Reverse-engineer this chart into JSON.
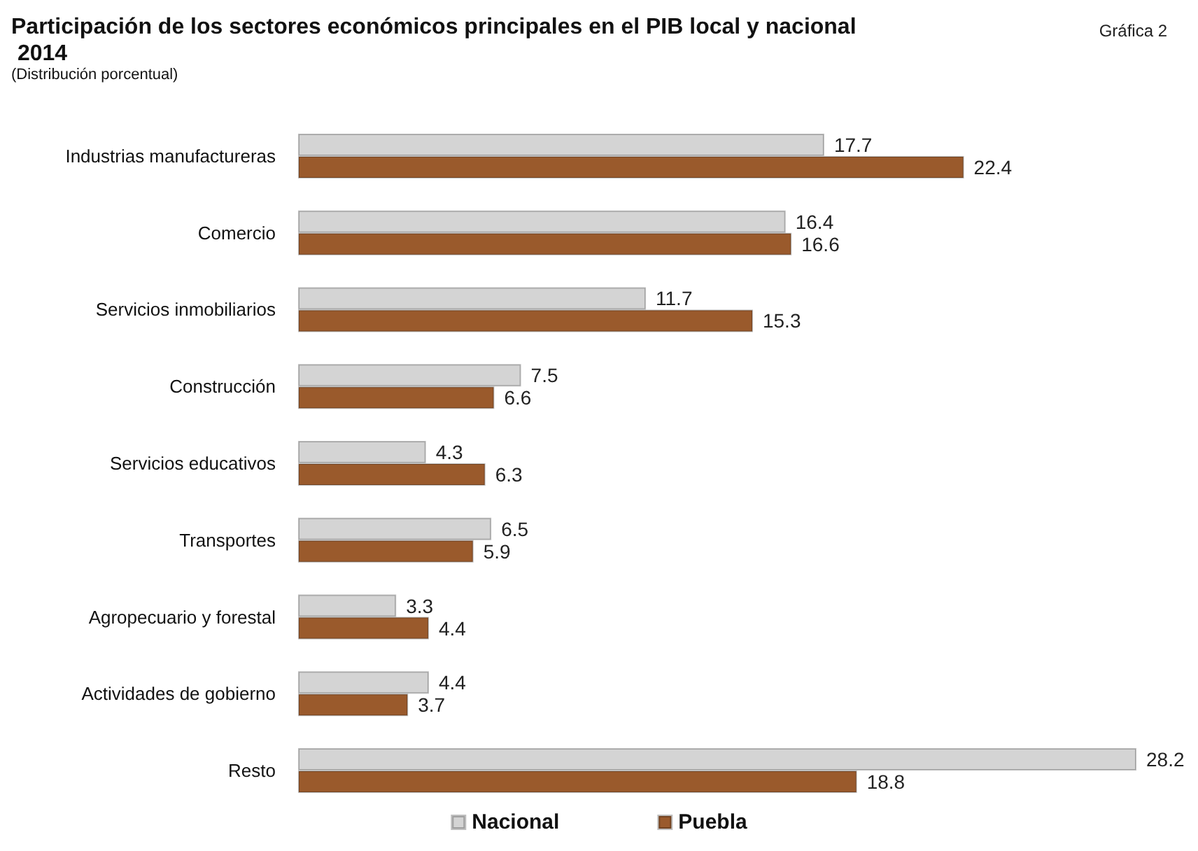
{
  "chart_data": {
    "type": "bar",
    "orientation": "horizontal",
    "title": "Participación de los sectores económicos principales en el PIB local y nacional 2014",
    "subtitle": "(Distribución porcentual)",
    "annotations": [
      "Gráfica 2"
    ],
    "categories": [
      "Industrias manufactureras",
      "Comercio",
      "Servicios inmobiliarios",
      "Construcción",
      "Servicios educativos",
      "Transportes",
      "Agropecuario y forestal",
      "Actividades de gobierno",
      "Resto"
    ],
    "series": [
      {
        "name": "Nacional",
        "color": "#d4d4d4",
        "values": [
          17.7,
          16.4,
          11.7,
          7.5,
          4.3,
          6.5,
          3.3,
          4.4,
          28.2
        ]
      },
      {
        "name": "Puebla",
        "color": "#9a5a2c",
        "values": [
          22.4,
          16.6,
          15.3,
          6.6,
          6.3,
          5.9,
          4.4,
          3.7,
          18.8
        ]
      }
    ],
    "data_labels": true,
    "legend": "bottom"
  }
}
